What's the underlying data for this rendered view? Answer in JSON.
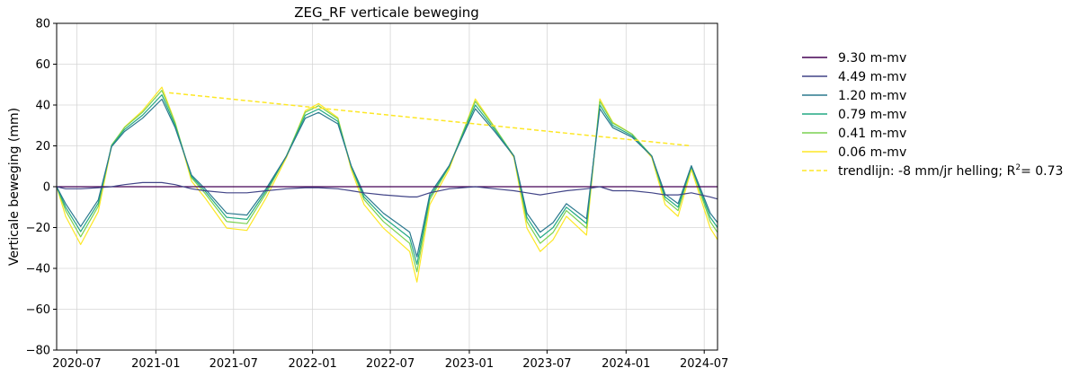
{
  "chart_data": {
    "type": "line",
    "title": "ZEG_RF verticale beweging",
    "xlabel": "",
    "ylabel": "Verticale beweging (mm)",
    "xlim": [
      "2020-05-15",
      "2024-08-01"
    ],
    "ylim": [
      -80,
      80
    ],
    "yticks": [
      80,
      60,
      40,
      20,
      0,
      -20,
      -40,
      -60,
      -80
    ],
    "xticks": [
      "2020-07",
      "2021-01",
      "2021-07",
      "2022-01",
      "2022-07",
      "2023-01",
      "2023-07",
      "2024-01",
      "2024-07"
    ],
    "grid": true,
    "legend_position": "right",
    "keypoints": {
      "dates": [
        "2020-05-15",
        "2020-06-05",
        "2020-07-10",
        "2020-08-20",
        "2020-09-20",
        "2020-10-20",
        "2020-12-01",
        "2021-01-15",
        "2021-02-15",
        "2021-03-25",
        "2021-04-25",
        "2021-06-15",
        "2021-08-01",
        "2021-09-15",
        "2021-11-01",
        "2021-12-15",
        "2022-01-15",
        "2022-03-01",
        "2022-04-01",
        "2022-05-01",
        "2022-06-15",
        "2022-08-15",
        "2022-09-01",
        "2022-10-01",
        "2022-11-15",
        "2023-01-15",
        "2023-03-01",
        "2023-04-15",
        "2023-05-15",
        "2023-06-15",
        "2023-07-15",
        "2023-08-15",
        "2023-10-01",
        "2023-11-01",
        "2023-12-01",
        "2024-01-15",
        "2024-03-01",
        "2024-04-01",
        "2024-05-01",
        "2024-06-01",
        "2024-07-15",
        "2024-08-01"
      ],
      "base": [
        0,
        -10,
        -22,
        -8,
        20,
        28,
        35,
        45,
        30,
        5,
        -2,
        -15,
        -16,
        -2,
        15,
        35,
        38,
        32,
        10,
        -5,
        -15,
        -25,
        -38,
        -5,
        10,
        40,
        28,
        15,
        -15,
        -25,
        -20,
        -10,
        -18,
        40,
        30,
        25,
        15,
        -5,
        -10,
        10,
        -15,
        -20
      ]
    },
    "series": [
      {
        "name": "9.30 m-mv",
        "color": "#440154",
        "offsets": [
          0,
          0,
          0,
          0,
          0,
          0,
          0,
          0,
          0,
          0,
          0,
          0,
          0,
          0,
          0,
          0,
          0,
          0,
          0,
          0,
          0,
          0,
          0,
          0,
          0,
          0,
          0,
          0,
          0,
          0,
          0,
          0,
          0,
          0,
          0,
          0,
          0,
          0,
          0,
          0,
          0,
          0
        ]
      },
      {
        "name": "4.49 m-mv",
        "color": "#414487",
        "offsets": [
          0,
          -1,
          -1,
          -0.5,
          0,
          1,
          2,
          2,
          1,
          -1,
          -2,
          -3,
          -3,
          -2,
          -1,
          -0.5,
          -0.5,
          -1,
          -2,
          -3,
          -4,
          -5,
          -5,
          -3,
          -1,
          0,
          -1,
          -2,
          -3,
          -4,
          -3,
          -2,
          -1,
          0,
          -2,
          -2,
          -3,
          -4,
          -4,
          -3,
          -5,
          -6
        ]
      }
    ],
    "scaled_series": [
      {
        "name": "1.20 m-mv",
        "color": "#2a788e",
        "scale": 0.93,
        "shift": 1
      },
      {
        "name": "0.79 m-mv",
        "color": "#22a884",
        "scale": 1.0,
        "shift": 0
      },
      {
        "name": "0.41 m-mv",
        "color": "#7ad151",
        "scale": 1.07,
        "shift": -1
      },
      {
        "name": "0.06 m-mv",
        "color": "#fde725",
        "scale": 1.15,
        "shift": -3
      }
    ],
    "trendline": {
      "name": "trendlijn: -8 mm/jr helling; R",
      "name_sup": "2",
      "name_end": "= 0.73",
      "color": "#fde725",
      "x": [
        "2021-02-01",
        "2024-06-01"
      ],
      "y": [
        46,
        20
      ]
    }
  }
}
